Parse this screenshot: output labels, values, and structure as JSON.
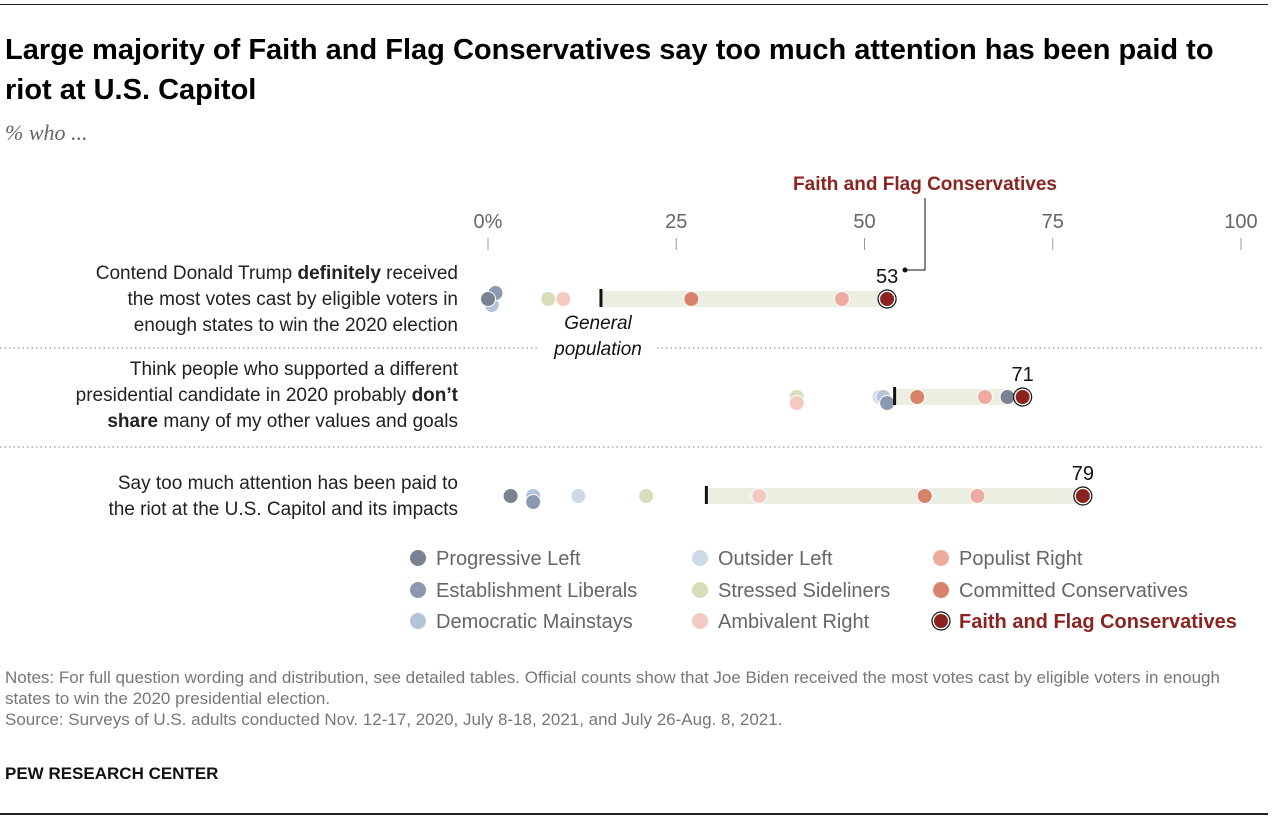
{
  "chart_data": {
    "type": "scatter",
    "title": "Large majority of Faith and Flag Conservatives say too much attention has been paid to riot at U.S. Capitol",
    "subtitle": "% who ...",
    "axis": {
      "min": 0,
      "max": 100,
      "ticks": [
        0,
        25,
        50,
        75,
        100
      ],
      "tick_labels": [
        "0%",
        "25",
        "50",
        "75",
        "100"
      ]
    },
    "highlight_label": "Faith and Flag Conservatives",
    "general_population_label": [
      "General",
      "population"
    ],
    "groups": [
      {
        "name": "Progressive Left",
        "color": "#7a8190"
      },
      {
        "name": "Establishment Liberals",
        "color": "#8b99b0"
      },
      {
        "name": "Democratic Mainstays",
        "color": "#b4c5da"
      },
      {
        "name": "Outsider Left",
        "color": "#ccd9e6"
      },
      {
        "name": "Stressed Sideliners",
        "color": "#d6dfb9"
      },
      {
        "name": "Ambivalent Right",
        "color": "#f3c9c1"
      },
      {
        "name": "Populist Right",
        "color": "#eeaa9e"
      },
      {
        "name": "Committed Conservatives",
        "color": "#d9826a"
      },
      {
        "name": "Faith and Flag Conservatives",
        "color": "#8b2420"
      }
    ],
    "rows": [
      {
        "label_parts": [
          [
            "Contend Donald Trump ",
            false
          ],
          [
            "definitely",
            true
          ],
          [
            " received",
            false
          ]
        ],
        "label_lines": [
          "Contend Donald Trump |definitely| received",
          "the most votes cast by eligible voters in",
          "enough states to win the 2020 election"
        ],
        "general_population": 15,
        "values": {
          "Progressive Left": 0,
          "Establishment Liberals": 1,
          "Democratic Mainstays": 0.5,
          "Outsider Left": 0.5,
          "Stressed Sideliners": 8,
          "Ambivalent Right": 10,
          "Populist Right": 47,
          "Committed Conservatives": 27,
          "Faith and Flag Conservatives": 53
        },
        "value_label": "53"
      },
      {
        "label_lines": [
          "Think people who supported a different",
          "presidential candidate in 2020 probably |don’t|",
          "|share| many of my other values and goals"
        ],
        "general_population": 54,
        "values": {
          "Progressive Left": 69,
          "Establishment Liberals": 53,
          "Democratic Mainstays": 52.5,
          "Outsider Left": 52,
          "Stressed Sideliners": 41,
          "Ambivalent Right": 41,
          "Populist Right": 66,
          "Committed Conservatives": 57,
          "Faith and Flag Conservatives": 71
        },
        "value_label": "71"
      },
      {
        "label_lines": [
          "Say too much attention has been paid to",
          "the riot at the U.S. Capitol and its impacts"
        ],
        "general_population": 29,
        "values": {
          "Progressive Left": 3,
          "Establishment Liberals": 6,
          "Democratic Mainstays": 6,
          "Outsider Left": 12,
          "Stressed Sideliners": 21,
          "Ambivalent Right": 36,
          "Populist Right": 65,
          "Committed Conservatives": 58,
          "Faith and Flag Conservatives": 79
        },
        "value_label": "79"
      }
    ],
    "legend_order": [
      [
        "Progressive Left",
        "Outsider Left",
        "Populist Right"
      ],
      [
        "Establishment Liberals",
        "Stressed Sideliners",
        "Committed Conservatives"
      ],
      [
        "Democratic Mainstays",
        "Ambivalent Right",
        "Faith and Flag Conservatives"
      ]
    ]
  },
  "notes": "Notes: For full question wording and distribution, see detailed tables. Official counts show that Joe Biden received the most votes cast by eligible voters in enough states to win the 2020 presidential election.",
  "source": "Source: Surveys of U.S. adults conducted Nov. 12-17, 2020, July 8-18, 2021, and July 26-Aug. 8, 2021.",
  "brand": "PEW RESEARCH CENTER",
  "colors": {
    "highlight": "#8b2420",
    "range_bar": "#eceee2",
    "axis_text": "#666666"
  }
}
